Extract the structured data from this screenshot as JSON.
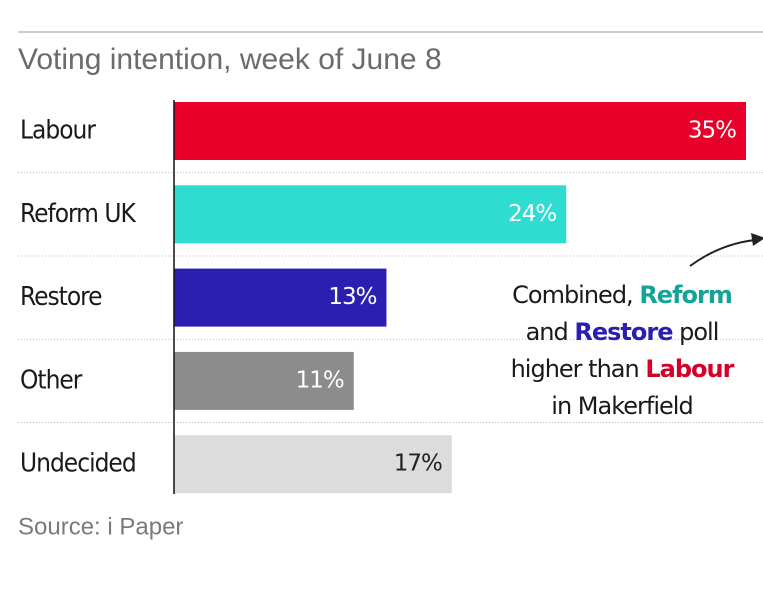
{
  "chart_data": {
    "type": "bar",
    "orientation": "horizontal",
    "title": "Voting intention, week of June 8",
    "categories": [
      "Labour",
      "Reform UK",
      "Restore",
      "Other",
      "Undecided"
    ],
    "values": [
      35,
      24,
      13,
      11,
      17
    ],
    "value_labels": [
      "35%",
      "24%",
      "13%",
      "11%",
      "17%"
    ],
    "colors": [
      "#e8002a",
      "#2fdcd0",
      "#2a1fb0",
      "#8c8c8c",
      "#dcdcdc"
    ],
    "annotation": [
      [
        {
          "text": "Combined, "
        },
        {
          "text": "Reform",
          "color": "#14a394"
        }
      ],
      [
        {
          "text": "and "
        },
        {
          "text": "Restore",
          "color": "#2a1fb0"
        },
        {
          "text": " poll"
        }
      ],
      [
        {
          "text": "higher than "
        },
        {
          "text": "Labour",
          "color": "#d3002a"
        }
      ],
      [
        {
          "text": "in Makerfield"
        }
      ]
    ],
    "source": "Source: i Paper"
  }
}
